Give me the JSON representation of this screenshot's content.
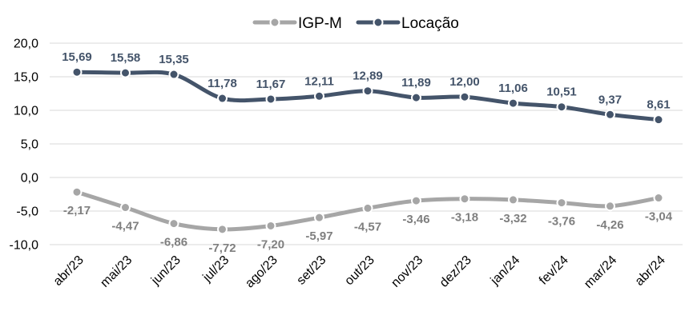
{
  "chart_data": {
    "type": "line",
    "categories": [
      "abr/23",
      "mai/23",
      "jun/23",
      "jul/23",
      "ago/23",
      "set/23",
      "out/23",
      "nov/23",
      "dez/23",
      "jan/24",
      "fev/24",
      "mar/24",
      "abr/24"
    ],
    "series": [
      {
        "name": "IGP-M",
        "color": "#a6a6a6",
        "values": [
          -2.17,
          -4.47,
          -6.86,
          -7.72,
          -7.2,
          -5.97,
          -4.57,
          -3.46,
          -3.18,
          -3.32,
          -3.76,
          -4.26,
          -3.04
        ],
        "labels": [
          "-2,17",
          "-4,47",
          "-6,86",
          "-7,72",
          "-7,20",
          "-5,97",
          "-4,57",
          "-3,46",
          "-3,18",
          "-3,32",
          "-3,76",
          "-4,26",
          "-3,04"
        ],
        "label_color": "#7f7f7f",
        "label_position": "below"
      },
      {
        "name": "Locação",
        "color": "#44546a",
        "values": [
          15.69,
          15.58,
          15.35,
          11.78,
          11.67,
          12.11,
          12.89,
          11.89,
          12.0,
          11.06,
          10.51,
          9.37,
          8.61
        ],
        "labels": [
          "15,69",
          "15,58",
          "15,35",
          "11,78",
          "11,67",
          "12,11",
          "12,89",
          "11,89",
          "12,00",
          "11,06",
          "10,51",
          "9,37",
          "8,61"
        ],
        "label_color": "#44546a",
        "label_position": "above"
      }
    ],
    "ylim": [
      -10,
      20
    ],
    "yticks": [
      20,
      15,
      10,
      5,
      0,
      -5,
      -10
    ],
    "ytick_labels": [
      "20,0",
      "15,0",
      "10,0",
      "5,0",
      "0,0",
      "-5,0",
      "-10,0"
    ],
    "grid": true,
    "legend_position": "top-center",
    "title": "",
    "xlabel": "",
    "ylabel": ""
  }
}
